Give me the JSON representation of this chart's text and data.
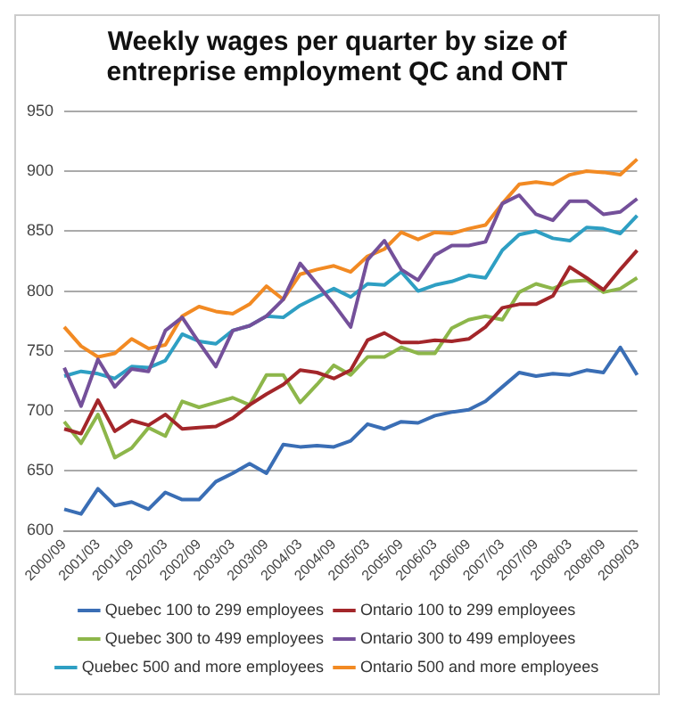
{
  "chart_data": {
    "type": "line",
    "title": "Weekly wages per quarter by size of entreprise employment QC and ONT",
    "categories": [
      "2000/09",
      null,
      "2001/03",
      null,
      "2001/09",
      null,
      "2002/03",
      null,
      "2002/09",
      null,
      "2003/03",
      null,
      "2003/09",
      null,
      "2004/03",
      null,
      "2004/09",
      null,
      "2005/03",
      null,
      "2005/09",
      null,
      "2006/03",
      null,
      "2006/09",
      null,
      "2007/03",
      null,
      "2007/09",
      null,
      "2008/03",
      null,
      "2008/09",
      null,
      "2009/03"
    ],
    "series": [
      {
        "name": "Quebec 100 to 299 employees",
        "color": "#3a6eb5",
        "values": [
          618,
          614,
          635,
          621,
          624,
          618,
          632,
          626,
          626,
          641,
          648,
          656,
          648,
          672,
          670,
          671,
          670,
          675,
          689,
          685,
          691,
          690,
          696,
          699,
          701,
          708,
          720,
          732,
          729,
          731,
          730,
          734,
          732,
          753,
          730
        ]
      },
      {
        "name": "Ontario 100 to 299 employees",
        "color": "#a3262a",
        "values": [
          685,
          681,
          709,
          683,
          692,
          688,
          697,
          685,
          686,
          687,
          694,
          705,
          714,
          722,
          734,
          732,
          727,
          734,
          759,
          765,
          757,
          757,
          759,
          758,
          760,
          770,
          786,
          789,
          789,
          796,
          820,
          811,
          801,
          818,
          834
        ]
      },
      {
        "name": "Quebec 300 to 499 employees",
        "color": "#8db64a",
        "values": [
          691,
          673,
          697,
          661,
          669,
          686,
          679,
          708,
          703,
          707,
          711,
          705,
          730,
          730,
          707,
          722,
          738,
          730,
          745,
          745,
          753,
          748,
          748,
          769,
          776,
          779,
          776,
          799,
          806,
          802,
          808,
          809,
          799,
          802,
          811
        ]
      },
      {
        "name": "Ontario 300 to 499 employees",
        "color": "#74509a",
        "values": [
          736,
          704,
          743,
          720,
          735,
          733,
          767,
          778,
          757,
          737,
          767,
          771,
          779,
          793,
          823,
          806,
          789,
          770,
          826,
          842,
          818,
          809,
          830,
          838,
          838,
          841,
          873,
          880,
          864,
          859,
          875,
          875,
          864,
          866,
          877
        ]
      },
      {
        "name": "Quebec 500 and more employees",
        "color": "#2e9fc3",
        "values": [
          729,
          733,
          731,
          727,
          737,
          736,
          742,
          764,
          758,
          756,
          767,
          771,
          779,
          778,
          788,
          795,
          802,
          795,
          806,
          805,
          816,
          800,
          805,
          808,
          813,
          811,
          834,
          847,
          850,
          844,
          842,
          853,
          852,
          848,
          863
        ]
      },
      {
        "name": "Ontario 500 and more employees",
        "color": "#f28a23",
        "values": [
          770,
          754,
          745,
          748,
          760,
          752,
          755,
          779,
          787,
          783,
          781,
          789,
          804,
          793,
          814,
          818,
          821,
          816,
          829,
          835,
          849,
          843,
          849,
          848,
          852,
          855,
          873,
          889,
          891,
          889,
          897,
          900,
          899,
          897,
          910
        ]
      }
    ],
    "ylim": [
      600,
      950
    ],
    "yticks": [
      600,
      650,
      700,
      750,
      800,
      850,
      900,
      950
    ],
    "grid": "y",
    "legend": "bottom",
    "marker": "none",
    "line_style": "solid"
  }
}
